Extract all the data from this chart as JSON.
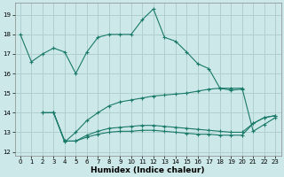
{
  "xlabel": "Humidex (Indice chaleur)",
  "bg_color": "#cce8e8",
  "grid_color": "#b0d0d0",
  "line_color": "#1a7a6a",
  "xlim": [
    -0.5,
    23.5
  ],
  "ylim": [
    11.8,
    19.6
  ],
  "xticks": [
    0,
    1,
    2,
    3,
    4,
    5,
    6,
    7,
    8,
    9,
    10,
    11,
    12,
    13,
    14,
    15,
    16,
    17,
    18,
    19,
    20,
    21,
    22,
    23
  ],
  "yticks": [
    12,
    13,
    14,
    15,
    16,
    17,
    18,
    19
  ],
  "line1_x": [
    0,
    1,
    2,
    3,
    4,
    5,
    6,
    7,
    8,
    9,
    10,
    11,
    12,
    13,
    14,
    15,
    16,
    17,
    18,
    19,
    20
  ],
  "line1_y": [
    18.0,
    16.6,
    17.0,
    17.3,
    17.1,
    16.0,
    17.1,
    17.85,
    18.0,
    18.0,
    18.0,
    18.75,
    19.3,
    17.85,
    17.65,
    17.1,
    16.5,
    16.25,
    15.25,
    15.15,
    15.2
  ],
  "line2_x": [
    2,
    3,
    4,
    5,
    6,
    7,
    8,
    9,
    10,
    11,
    12,
    13,
    14,
    15,
    16,
    17,
    18,
    19,
    20,
    21,
    22,
    23
  ],
  "line2_y": [
    14.0,
    14.0,
    12.5,
    13.0,
    13.6,
    14.0,
    14.35,
    14.55,
    14.65,
    14.75,
    14.85,
    14.9,
    14.95,
    15.0,
    15.1,
    15.2,
    15.25,
    15.25,
    15.25,
    13.05,
    13.4,
    13.75
  ],
  "line3_x": [
    2,
    3,
    4,
    5,
    6,
    7,
    8,
    9,
    10,
    11,
    12,
    13,
    14,
    15,
    16,
    17,
    18,
    19,
    20,
    21,
    22,
    23
  ],
  "line3_y": [
    14.0,
    14.0,
    12.55,
    12.55,
    12.85,
    13.05,
    13.2,
    13.25,
    13.3,
    13.35,
    13.35,
    13.3,
    13.25,
    13.2,
    13.15,
    13.1,
    13.05,
    13.0,
    13.0,
    13.45,
    13.75,
    13.85
  ],
  "line4_x": [
    3,
    4,
    5,
    6,
    7,
    8,
    9,
    10,
    11,
    12,
    13,
    14,
    15,
    16,
    17,
    18,
    19,
    20,
    21,
    22,
    23
  ],
  "line4_y": [
    14.0,
    12.55,
    12.55,
    12.75,
    12.9,
    13.0,
    13.05,
    13.05,
    13.1,
    13.1,
    13.05,
    13.0,
    12.95,
    12.9,
    12.9,
    12.85,
    12.85,
    12.85,
    13.45,
    13.75,
    13.85
  ]
}
